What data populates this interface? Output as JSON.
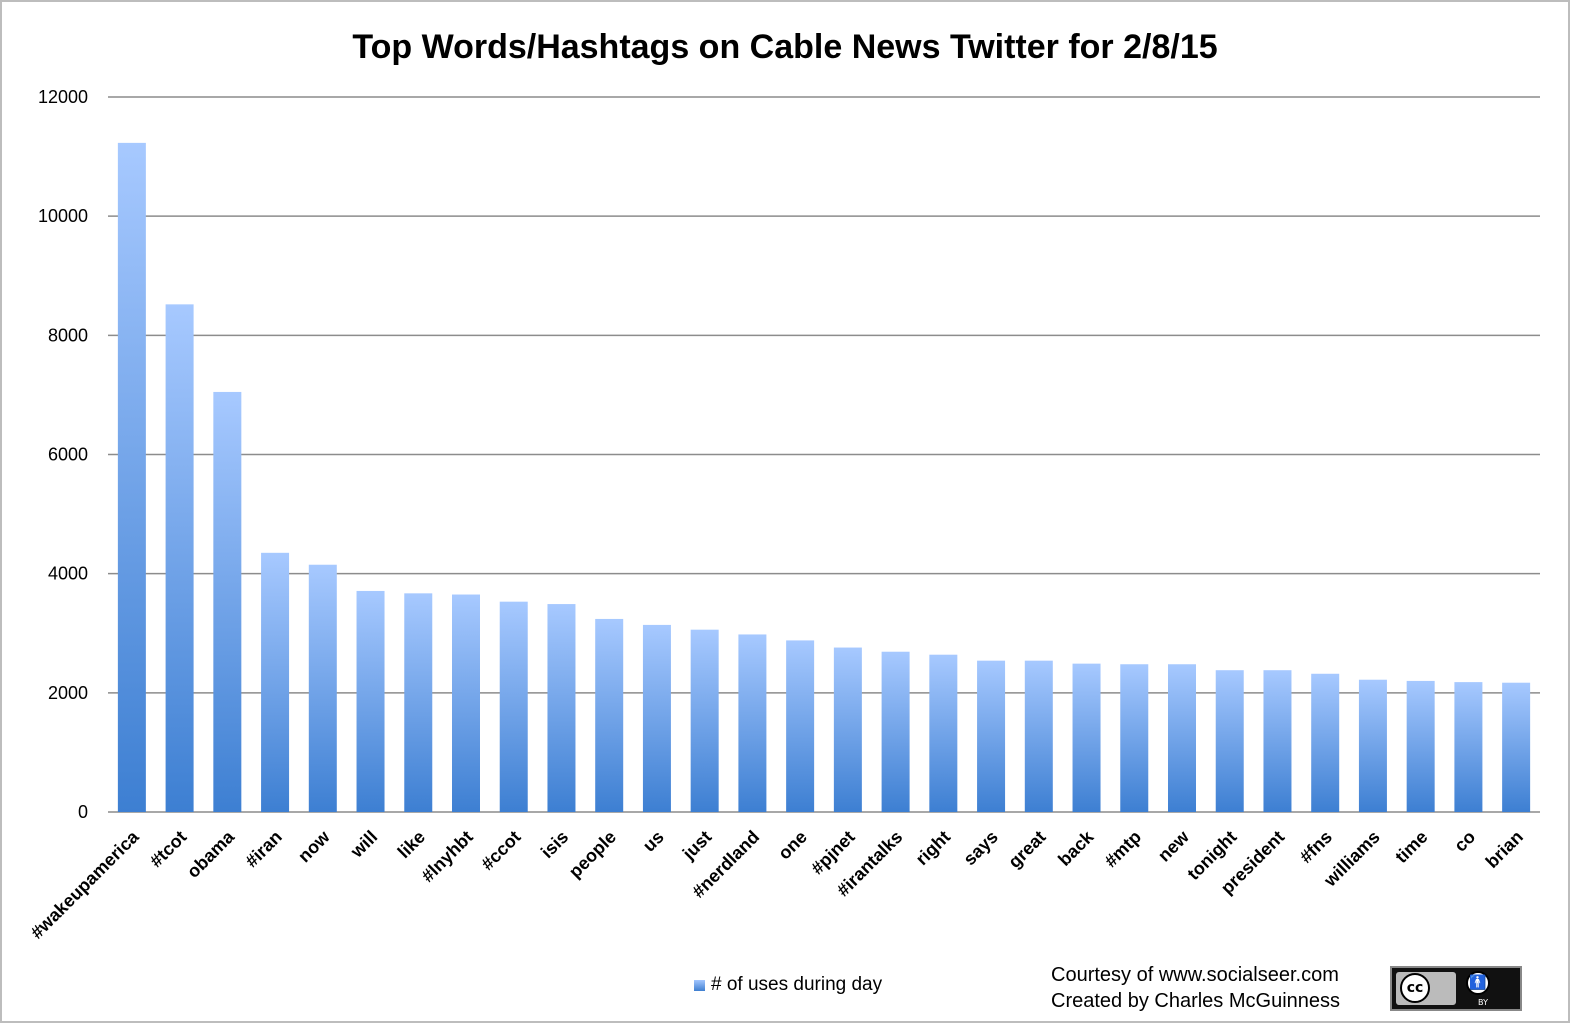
{
  "chart_data": {
    "type": "bar",
    "title": "Top Words/Hashtags on Cable News Twitter for 2/8/15",
    "categories": [
      "#wakeupamerica",
      "#tcot",
      "obama",
      "#iran",
      "now",
      "will",
      "like",
      "#lnyhbt",
      "#ccot",
      "isis",
      "people",
      "us",
      "just",
      "#nerdland",
      "one",
      "#pjnet",
      "#irantalks",
      "right",
      "says",
      "great",
      "back",
      "#mtp",
      "new",
      "tonight",
      "president",
      "#fns",
      "williams",
      "time",
      "co",
      "brian"
    ],
    "series": [
      {
        "name": "# of uses during day",
        "values": [
          11230,
          8520,
          7050,
          4350,
          4150,
          3710,
          3670,
          3650,
          3530,
          3490,
          3240,
          3140,
          3060,
          2980,
          2880,
          2760,
          2690,
          2640,
          2540,
          2540,
          2490,
          2480,
          2480,
          2380,
          2380,
          2320,
          2220,
          2200,
          2180,
          2170
        ]
      }
    ],
    "yticks": [
      0,
      2000,
      4000,
      6000,
      8000,
      10000,
      12000
    ],
    "ylim": [
      0,
      12000
    ],
    "grid": true,
    "legend_position": "bottom",
    "colors": {
      "bar_top": "#a7c9ff",
      "bar_bottom": "#3d7fd2",
      "grid": "#8c8c8c"
    }
  },
  "credit": {
    "line1": "Courtesy of www.socialseer.com",
    "line2": "Created by Charles McGuinness"
  },
  "badge": {
    "cc": "cc",
    "by": "BY",
    "icon": "person-icon"
  }
}
